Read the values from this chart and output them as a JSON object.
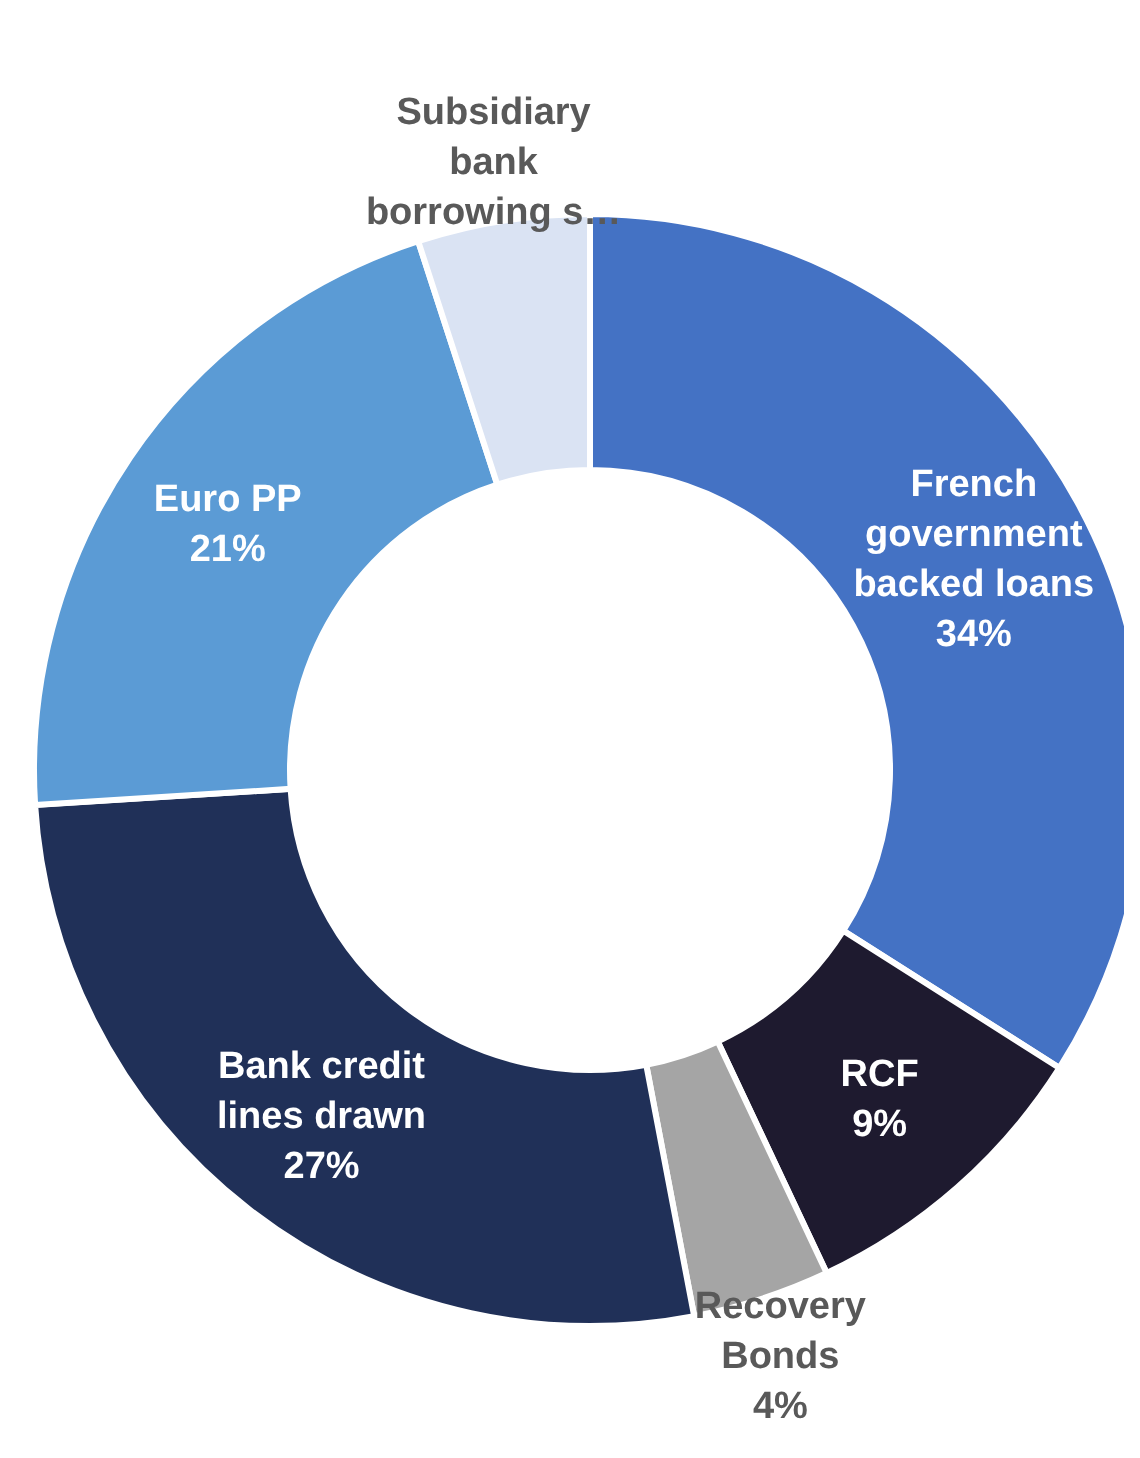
{
  "chart_data": {
    "type": "donut",
    "categories": [
      "French government backed loans",
      "RCF",
      "Recovery Bonds",
      "Bank credit lines drawn",
      "Euro PP",
      "Subsidiary bank borrowing s…"
    ],
    "values": [
      34,
      9,
      4,
      27,
      21,
      5
    ],
    "colors": [
      "#4472c4",
      "#1e1a2f",
      "#a5a5a5",
      "#203058",
      "#5b9bd5",
      "#dae3f3"
    ],
    "value_labels": [
      "34%",
      "9%",
      "4%",
      "27%",
      "21%",
      null
    ]
  }
}
